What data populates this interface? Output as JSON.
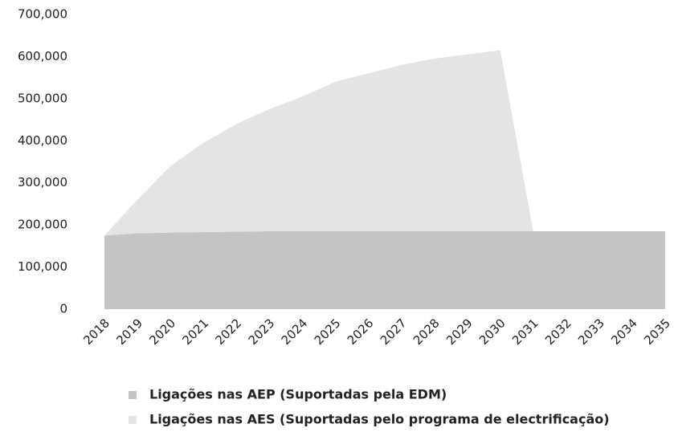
{
  "chart_data": {
    "type": "stacked-area",
    "categories": [
      "2018",
      "2019",
      "2020",
      "2021",
      "2022",
      "2023",
      "2024",
      "2025",
      "2026",
      "2027",
      "2028",
      "2029",
      "2030",
      "2031",
      "2032",
      "2033",
      "2034",
      "2035"
    ],
    "series": [
      {
        "name": "Ligações nas AEP (Suportadas pela EDM)",
        "color": "#c4c4c4",
        "values": [
          175000,
          180000,
          182000,
          183000,
          184000,
          185000,
          185000,
          185000,
          185000,
          185000,
          185000,
          185000,
          185000,
          185000,
          185000,
          185000,
          185000,
          185000
        ]
      },
      {
        "name": "Ligações nas AES (Suportadas pelo programa de electrificação)",
        "color": "#e4e4e4",
        "values": [
          0,
          80000,
          158000,
          212000,
          256000,
          290000,
          320000,
          355000,
          375000,
          395000,
          410000,
          420000,
          430000,
          0,
          0,
          0,
          0,
          0
        ]
      }
    ],
    "ylim": [
      0,
      700000
    ],
    "yticks": [
      0,
      {
        "value": 100000,
        "label": "100,000"
      },
      {
        "value": 200000,
        "label": "200,000"
      },
      {
        "value": 300000,
        "label": "300,000"
      },
      {
        "value": 400000,
        "label": "400,000"
      },
      {
        "value": 500000,
        "label": "500,000"
      },
      {
        "value": 600000,
        "label": "600,000"
      },
      {
        "value": 700000,
        "label": "700,000"
      }
    ]
  }
}
